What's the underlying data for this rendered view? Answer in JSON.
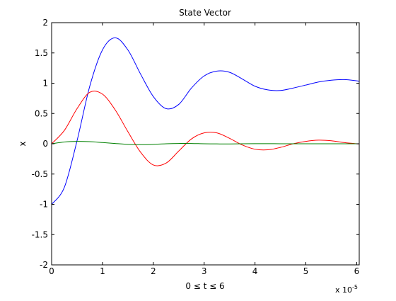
{
  "chart_data": {
    "type": "line",
    "title": "State Vector",
    "xlabel": "0 ≤ t ≤ 6",
    "ylabel": "x",
    "x_exponent_label": "x 10",
    "x_exponent_power": "-5",
    "xlim": [
      0,
      6.05
    ],
    "ylim": [
      -2,
      2
    ],
    "grid": false,
    "x_ticks": [
      0,
      1,
      2,
      3,
      4,
      5,
      6
    ],
    "x_tick_labels": [
      "0",
      "1",
      "2",
      "3",
      "4",
      "5",
      "6"
    ],
    "y_ticks": [
      -2,
      -1.5,
      -1,
      -0.5,
      0,
      0.5,
      1,
      1.5,
      2
    ],
    "y_tick_labels": [
      "-2",
      "-1.5",
      "-1",
      "-0.5",
      "0",
      "0.5",
      "1",
      "1.5",
      "2"
    ],
    "x": [
      0,
      0.25,
      0.5,
      0.75,
      1.0,
      1.25,
      1.5,
      1.75,
      2.0,
      2.25,
      2.5,
      2.75,
      3.0,
      3.25,
      3.5,
      3.75,
      4.0,
      4.25,
      4.5,
      4.75,
      5.0,
      5.25,
      5.5,
      5.75,
      6.0,
      6.05
    ],
    "series": [
      {
        "color": "#0000ff",
        "values": [
          -1.0,
          -0.72,
          0.05,
          0.95,
          1.55,
          1.75,
          1.55,
          1.15,
          0.78,
          0.58,
          0.65,
          0.92,
          1.12,
          1.2,
          1.18,
          1.07,
          0.95,
          0.89,
          0.88,
          0.92,
          0.97,
          1.02,
          1.05,
          1.06,
          1.04,
          1.03
        ]
      },
      {
        "color": "#ff0000",
        "values": [
          0.0,
          0.22,
          0.58,
          0.85,
          0.82,
          0.56,
          0.2,
          -0.14,
          -0.35,
          -0.32,
          -0.12,
          0.08,
          0.18,
          0.18,
          0.09,
          -0.02,
          -0.09,
          -0.1,
          -0.06,
          0.0,
          0.04,
          0.06,
          0.05,
          0.02,
          0.0,
          0.0
        ]
      },
      {
        "color": "#008000",
        "values": [
          0.0,
          0.03,
          0.04,
          0.035,
          0.02,
          0.005,
          -0.01,
          -0.015,
          -0.01,
          0.0,
          0.005,
          0.005,
          0.0,
          -0.002,
          -0.003,
          0.0,
          0.002,
          0.002,
          0.0,
          0.0,
          0.0,
          0.0,
          0.0,
          0.0,
          0.0,
          0.0
        ]
      }
    ]
  }
}
